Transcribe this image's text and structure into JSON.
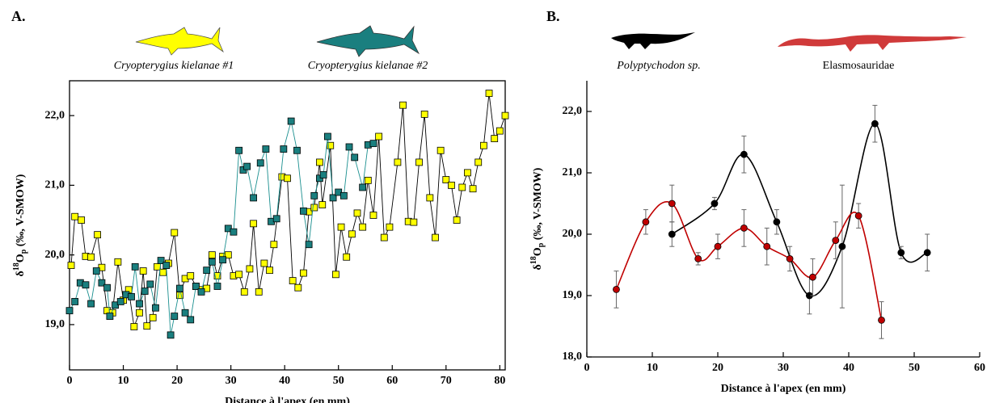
{
  "chart_data": [
    {
      "type": "line",
      "label": "A.",
      "marker": "square",
      "smooth": false,
      "frame": true,
      "xlabel": "Distance à l'apex (en mm)",
      "ylabel": [
        "δ",
        "18",
        "O",
        "p",
        " (‰, V-SMOW)"
      ],
      "xlim": [
        0,
        81
      ],
      "xticks": [
        0,
        10,
        20,
        30,
        40,
        50,
        60,
        70,
        80
      ],
      "ylim": [
        18.35,
        22.5
      ],
      "yticks": [
        {
          "value": 19,
          "label": "19,0"
        },
        {
          "value": 20,
          "label": "20,0"
        },
        {
          "value": 21,
          "label": "21,0"
        },
        {
          "value": 22,
          "label": "22,0"
        }
      ],
      "series": [
        {
          "name": "Cryopterygius kielanae #1",
          "color": "#ffff00",
          "line_color": "#000000",
          "x": [
            0.3,
            1,
            2.2,
            3,
            4,
            5.2,
            6,
            7,
            8,
            9,
            10,
            11,
            12,
            13,
            13.7,
            14.4,
            15.5,
            16.3,
            17.4,
            18.4,
            19.5,
            20.5,
            21.5,
            22.5,
            23.5,
            24.5,
            25.5,
            26.5,
            27.5,
            28.5,
            29.5,
            30.5,
            31.5,
            32.5,
            33.5,
            34.2,
            35.2,
            36.2,
            37.2,
            38,
            39.5,
            40.5,
            41.5,
            42.5,
            43.5,
            44.5,
            45.5,
            46.5,
            47,
            48.5,
            49.5,
            50.5,
            51.5,
            52.5,
            53.5,
            54.5,
            55.5,
            56.5,
            57.5,
            58.5,
            59.5,
            61,
            62,
            63,
            64,
            65,
            66,
            67,
            68,
            69,
            70,
            71,
            72,
            73,
            74,
            75,
            76,
            77,
            78,
            79,
            80,
            81
          ],
          "values": [
            19.85,
            20.55,
            20.5,
            19.98,
            19.97,
            20.29,
            19.82,
            19.2,
            19.17,
            19.9,
            19.35,
            19.5,
            18.97,
            19.17,
            19.77,
            18.98,
            19.1,
            19.83,
            19.75,
            19.88,
            20.32,
            19.42,
            19.66,
            19.7,
            19.55,
            19.5,
            19.52,
            20.0,
            19.7,
            19.98,
            20.0,
            19.7,
            19.72,
            19.47,
            19.8,
            20.45,
            19.47,
            19.88,
            19.78,
            20.15,
            21.12,
            21.1,
            19.63,
            19.53,
            19.74,
            20.62,
            20.68,
            21.33,
            20.72,
            21.57,
            19.72,
            20.4,
            19.97,
            20.3,
            20.6,
            20.4,
            21.07,
            20.57,
            21.7,
            20.25,
            20.4,
            21.33,
            22.15,
            20.48,
            20.47,
            21.33,
            22.02,
            20.82,
            20.25,
            21.5,
            21.08,
            21.0,
            20.5,
            20.97,
            21.18,
            20.95,
            21.33,
            21.57,
            22.32,
            21.67,
            21.78,
            22.0
          ]
        },
        {
          "name": "Cryopterygius kielanae #2",
          "color": "#1a7f7f",
          "line_color": "#1a8f8f",
          "x": [
            0,
            1,
            2,
            3,
            4,
            5,
            6,
            7,
            7.5,
            8.5,
            9.5,
            10.5,
            11.5,
            12.2,
            13,
            14,
            15,
            16,
            17,
            18,
            18.8,
            19.5,
            20.5,
            21.5,
            22.5,
            23.5,
            24.5,
            25.5,
            26.5,
            27.5,
            28.5,
            29.5,
            30.5,
            31.5,
            32.3,
            33,
            34.2,
            35.5,
            36.5,
            37.5,
            38.5,
            39.8,
            41.2,
            42.3,
            43.5,
            44.5,
            45.5,
            46.5,
            47.2,
            48,
            49,
            50,
            51,
            52,
            53,
            54.5,
            55.5,
            56.5
          ],
          "values": [
            19.2,
            19.33,
            19.6,
            19.57,
            19.3,
            19.77,
            19.6,
            19.53,
            19.12,
            19.28,
            19.33,
            19.43,
            19.4,
            19.83,
            19.3,
            19.48,
            19.58,
            19.24,
            19.92,
            19.85,
            18.85,
            19.12,
            19.52,
            19.17,
            19.07,
            19.55,
            19.47,
            19.78,
            19.9,
            19.55,
            19.93,
            20.38,
            20.33,
            21.5,
            21.22,
            21.27,
            20.82,
            21.32,
            21.52,
            20.48,
            20.52,
            21.52,
            21.92,
            21.5,
            20.63,
            20.15,
            20.85,
            21.1,
            21.15,
            21.7,
            20.82,
            20.9,
            20.85,
            21.55,
            21.4,
            20.97,
            21.58,
            21.6
          ]
        }
      ]
    },
    {
      "type": "line",
      "label": "B.",
      "marker": "circle",
      "smooth": true,
      "frame": false,
      "xlabel": "Distance à l'apex (en mm)",
      "ylabel": [
        "δ",
        "18",
        "O",
        "p",
        " (‰, V-SMOW)"
      ],
      "xlim": [
        0,
        60
      ],
      "xticks": [
        0,
        10,
        20,
        30,
        40,
        50,
        60
      ],
      "ylim": [
        18,
        22.5
      ],
      "yticks": [
        {
          "value": 18,
          "label": "18,0"
        },
        {
          "value": 19,
          "label": "19,0"
        },
        {
          "value": 20,
          "label": "20,0"
        },
        {
          "value": 21,
          "label": "21,0"
        },
        {
          "value": 22,
          "label": "22,0"
        }
      ],
      "series": [
        {
          "name": "Polyptychodon sp.",
          "color": "#000000",
          "line_color": "#000000",
          "x": [
            13,
            19.5,
            24,
            29,
            34,
            39,
            44,
            48,
            52
          ],
          "values": [
            20.0,
            20.5,
            21.3,
            20.2,
            19.0,
            19.8,
            21.8,
            19.7,
            19.7
          ],
          "errors": [
            0.2,
            0.1,
            0.3,
            0.2,
            0.3,
            1.0,
            0.3,
            0.1,
            0.3
          ]
        },
        {
          "name": "Elasmosauridae",
          "color": "#c00000",
          "line_color": "#c00000",
          "x": [
            4.5,
            9,
            13,
            17,
            20,
            24,
            27.5,
            31,
            34.5,
            38,
            41.5,
            45
          ],
          "values": [
            19.1,
            20.2,
            20.5,
            19.6,
            19.8,
            20.1,
            19.8,
            19.6,
            19.3,
            19.9,
            20.3,
            18.6
          ],
          "errors": [
            0.3,
            0.2,
            0.3,
            0.1,
            0.2,
            0.3,
            0.3,
            0.2,
            0.3,
            0.3,
            0.2,
            0.3
          ]
        }
      ]
    }
  ]
}
